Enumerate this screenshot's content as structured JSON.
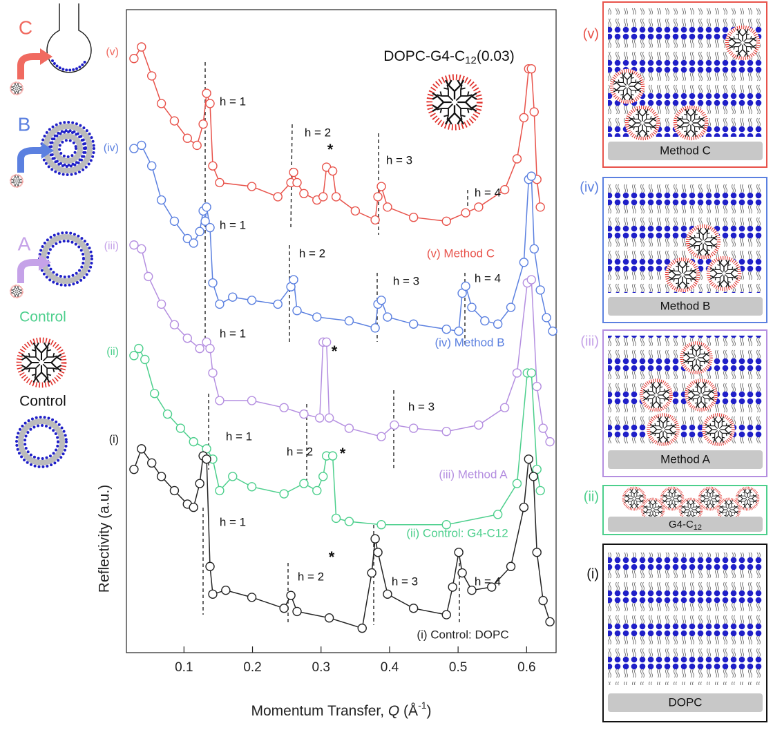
{
  "chart_data": {
    "type": "scatter-line",
    "title": "DOPC-G4-C",
    "title_subscript": "12",
    "title_suffix": "(0.03)",
    "x_label": "Momentum Transfer, ",
    "x_label_var": "Q",
    "x_label_unit": " (Å",
    "x_label_unit_exp": "-1",
    "x_label_close": ")",
    "y_label": "Reflectivity (a.u.)",
    "xlim": [
      0.016,
      0.643
    ],
    "xticks": [
      0.1,
      0.2,
      0.3,
      0.4,
      0.5,
      0.6
    ],
    "ylim": [
      0,
      100
    ],
    "series": [
      {
        "name": "(v) Method C",
        "color": "#e8524a",
        "x": [
          0.027,
          0.038,
          0.053,
          0.067,
          0.086,
          0.105,
          0.119,
          0.128,
          0.133,
          0.138,
          0.142,
          0.152,
          0.199,
          0.237,
          0.256,
          0.26,
          0.265,
          0.275,
          0.294,
          0.303,
          0.308,
          0.317,
          0.322,
          0.35,
          0.379,
          0.383,
          0.388,
          0.397,
          0.435,
          0.483,
          0.511,
          0.53,
          0.568,
          0.586,
          0.596,
          0.603,
          0.607,
          0.611,
          0.615,
          0.62
        ],
        "values": [
          92.4,
          94.2,
          89.7,
          85.4,
          82.7,
          80.0,
          78.9,
          82.2,
          87.0,
          85.4,
          75.7,
          73.1,
          72.5,
          70.9,
          73.1,
          74.7,
          73.1,
          71.4,
          70.4,
          70.9,
          75.5,
          74.9,
          70.9,
          68.7,
          67.3,
          70.9,
          72.5,
          69.3,
          67.7,
          67.1,
          68.4,
          69.3,
          72.0,
          76.8,
          83.2,
          90.8,
          90.8,
          84.1,
          73.6,
          69.3
        ]
      },
      {
        "name": "(iv) Method B",
        "color": "#5b80e0",
        "x": [
          0.027,
          0.038,
          0.053,
          0.067,
          0.086,
          0.105,
          0.114,
          0.123,
          0.128,
          0.131,
          0.133,
          0.138,
          0.142,
          0.152,
          0.171,
          0.199,
          0.237,
          0.256,
          0.26,
          0.265,
          0.294,
          0.341,
          0.379,
          0.383,
          0.388,
          0.397,
          0.435,
          0.483,
          0.501,
          0.506,
          0.511,
          0.52,
          0.539,
          0.558,
          0.577,
          0.596,
          0.603,
          0.607,
          0.611,
          0.62,
          0.629,
          0.638
        ],
        "values": [
          78.4,
          78.9,
          75.7,
          70.4,
          67.1,
          64.4,
          63.7,
          65.5,
          68.7,
          67.1,
          69.3,
          66.1,
          57.5,
          54.2,
          55.3,
          54.8,
          54.2,
          56.9,
          58.0,
          53.2,
          52.2,
          51.6,
          50.5,
          54.2,
          54.8,
          52.2,
          51.1,
          50.3,
          50.0,
          55.9,
          57.0,
          53.7,
          51.6,
          51.1,
          53.7,
          60.7,
          73.6,
          74.1,
          62.8,
          56.4,
          52.1,
          50.0
        ]
      },
      {
        "name": "(iii) Method A",
        "color": "#b48ee0",
        "x": [
          0.027,
          0.038,
          0.048,
          0.067,
          0.086,
          0.105,
          0.123,
          0.133,
          0.138,
          0.142,
          0.152,
          0.199,
          0.246,
          0.275,
          0.298,
          0.303,
          0.308,
          0.312,
          0.341,
          0.388,
          0.407,
          0.435,
          0.483,
          0.53,
          0.568,
          0.586,
          0.601,
          0.607,
          0.615,
          0.624,
          0.634
        ],
        "values": [
          63.4,
          62.8,
          58.5,
          54.2,
          51.0,
          48.9,
          47.3,
          48.3,
          47.3,
          43.5,
          39.2,
          39.2,
          38.1,
          37.1,
          36.5,
          48.3,
          48.3,
          36.5,
          34.9,
          33.6,
          35.4,
          34.9,
          34.4,
          35.4,
          38.1,
          43.5,
          57.5,
          58.0,
          41.4,
          34.9,
          32.8
        ]
      },
      {
        "name": "(ii) Control: G4-C12",
        "color": "#4ccf8c",
        "x": [
          0.027,
          0.034,
          0.043,
          0.057,
          0.076,
          0.095,
          0.114,
          0.133,
          0.142,
          0.152,
          0.171,
          0.199,
          0.246,
          0.275,
          0.294,
          0.303,
          0.308,
          0.317,
          0.322,
          0.341,
          0.388,
          0.483,
          0.558,
          0.586,
          0.601,
          0.607,
          0.615,
          0.62
        ],
        "values": [
          46.2,
          47.3,
          45.6,
          40.3,
          37.1,
          34.9,
          32.8,
          31.7,
          30.1,
          25.2,
          27.4,
          25.8,
          24.7,
          26.3,
          25.2,
          27.4,
          30.6,
          30.6,
          20.9,
          20.4,
          19.9,
          19.9,
          21.5,
          26.3,
          43.5,
          43.5,
          28.5,
          25.2
        ]
      },
      {
        "name": "(i) Control: DOPC",
        "color": "#222222",
        "x": [
          0.027,
          0.038,
          0.053,
          0.067,
          0.086,
          0.105,
          0.114,
          0.123,
          0.128,
          0.133,
          0.138,
          0.142,
          0.161,
          0.199,
          0.246,
          0.256,
          0.265,
          0.312,
          0.36,
          0.374,
          0.379,
          0.383,
          0.397,
          0.435,
          0.483,
          0.492,
          0.501,
          0.506,
          0.52,
          0.549,
          0.577,
          0.596,
          0.603,
          0.61,
          0.615,
          0.624,
          0.634
        ],
        "values": [
          28.5,
          31.7,
          29.5,
          27.4,
          25.2,
          23.1,
          22.6,
          26.3,
          30.6,
          30.1,
          13.4,
          9.1,
          9.7,
          8.6,
          6.9,
          8.9,
          6.4,
          5.4,
          3.8,
          12.4,
          17.7,
          15.6,
          9.1,
          6.9,
          5.9,
          10.2,
          15.6,
          12.4,
          9.7,
          10.2,
          13.4,
          22.6,
          30.1,
          27.4,
          15.6,
          8.1,
          4.8
        ]
      }
    ],
    "annotations": [
      "h = 1",
      "h = 2",
      "*",
      "h = 3",
      "h = 4",
      "h = 1",
      "h = 2",
      "h = 3",
      "h = 4",
      "*",
      "h = 1",
      "h = 3",
      "h = 1",
      "h = 2",
      "*",
      "h = 1",
      "h = 2",
      "*",
      "h = 3",
      "h = 4"
    ]
  },
  "left_icons": {
    "labels": [
      "C",
      "B",
      "A",
      "Control",
      "Control"
    ],
    "romans": [
      "(v)",
      "(iv)",
      "(iii)",
      "(ii)",
      "(i)"
    ]
  },
  "right_panels": [
    {
      "roman": "(v)",
      "label": "Method C"
    },
    {
      "roman": "(iv)",
      "label": "Method B"
    },
    {
      "roman": "(iii)",
      "label": "Method A"
    },
    {
      "roman": "(ii)",
      "label": "G4-C",
      "label_subscript": "12"
    },
    {
      "roman": "(i)",
      "label": "DOPC"
    }
  ]
}
